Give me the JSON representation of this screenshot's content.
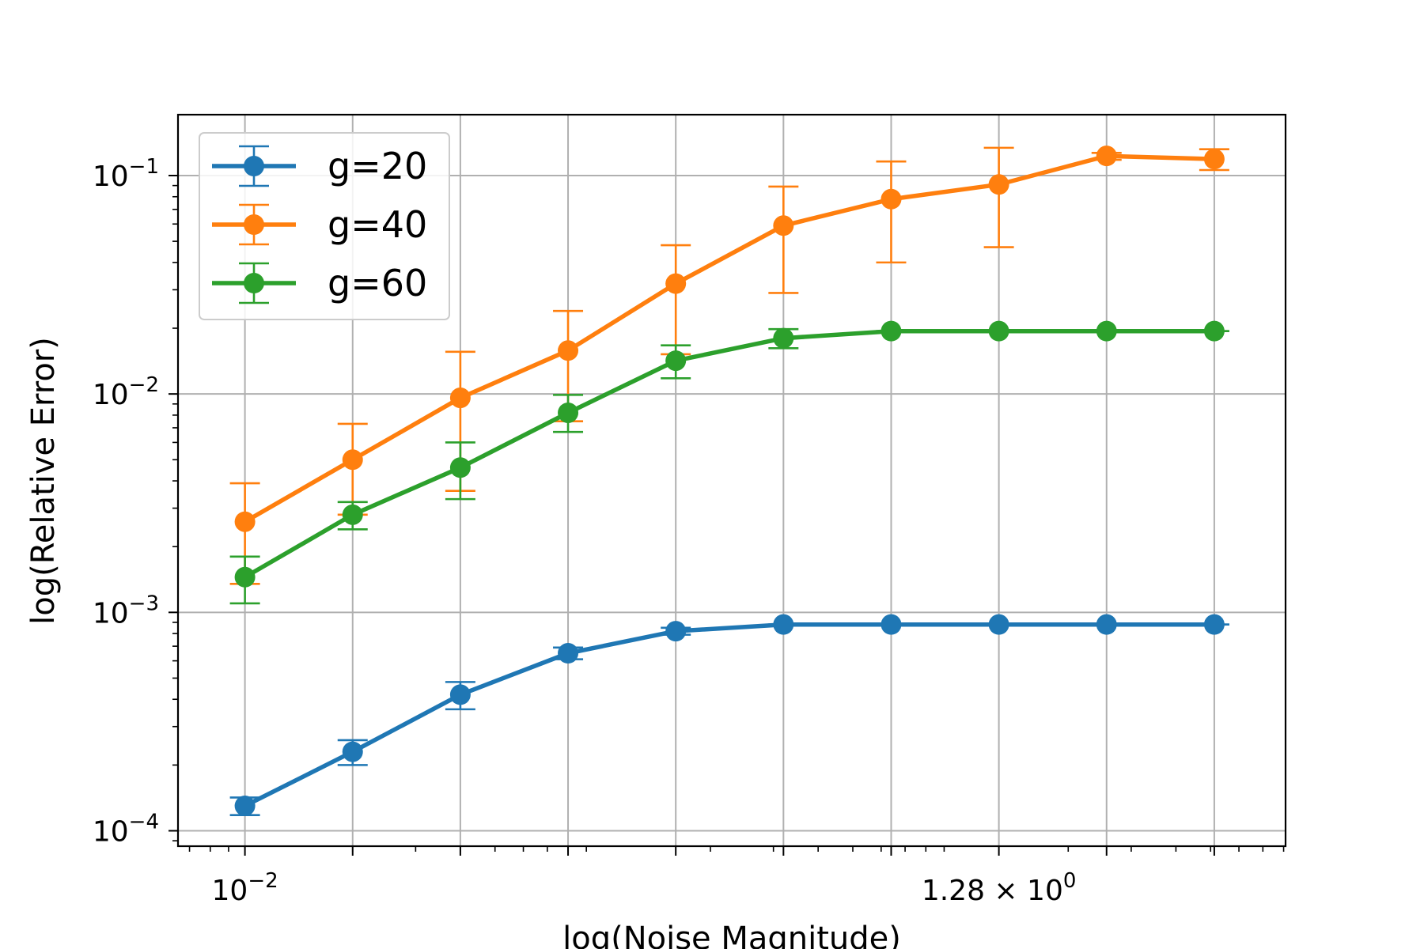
{
  "chart_data": {
    "type": "line",
    "xlabel": "log(Noise Magnitude)",
    "ylabel": "log(Relative Error)",
    "x_scale": "log2",
    "y_scale": "log10",
    "x": [
      0.01,
      0.02,
      0.04,
      0.08,
      0.16,
      0.32,
      0.64,
      1.28,
      2.56,
      5.12
    ],
    "xlim": [
      0.0065,
      8.1
    ],
    "ylim": [
      8.5e-05,
      0.19
    ],
    "x_tick_labels": [
      {
        "x": 0.01,
        "base": "10",
        "exp": "−2"
      },
      {
        "x": 1.28,
        "base": "1.28 × 10",
        "exp": "0"
      }
    ],
    "y_ticks": [
      {
        "y": 0.0001,
        "base": "10",
        "exp": "−4"
      },
      {
        "y": 0.001,
        "base": "10",
        "exp": "−3"
      },
      {
        "y": 0.01,
        "base": "10",
        "exp": "−2"
      },
      {
        "y": 0.1,
        "base": "10",
        "exp": "−1"
      }
    ],
    "grid": true,
    "legend_position": "top-left",
    "series": [
      {
        "name": "g=20",
        "color": "#1f77b4",
        "values": [
          0.00013,
          0.00023,
          0.00042,
          0.00065,
          0.00082,
          0.00088,
          0.00088,
          0.00088,
          0.00088,
          0.00088
        ],
        "err_low": [
          0.000118,
          0.0002,
          0.00036,
          0.00061,
          0.00079,
          0.00088,
          0.00088,
          0.00088,
          0.00088,
          0.00088
        ],
        "err_high": [
          0.000142,
          0.00026,
          0.00048,
          0.00069,
          0.00085,
          0.00088,
          0.00088,
          0.00088,
          0.00088,
          0.00088
        ]
      },
      {
        "name": "g=40",
        "color": "#ff7f0e",
        "values": [
          0.0026,
          0.005,
          0.0096,
          0.0158,
          0.032,
          0.059,
          0.078,
          0.091,
          0.123,
          0.119
        ],
        "err_low": [
          0.00135,
          0.0028,
          0.0036,
          0.0075,
          0.0152,
          0.029,
          0.04,
          0.047,
          0.118,
          0.106
        ],
        "err_high": [
          0.0039,
          0.0073,
          0.0156,
          0.024,
          0.048,
          0.089,
          0.116,
          0.134,
          0.127,
          0.132
        ]
      },
      {
        "name": "g=60",
        "color": "#2ca02c",
        "values": [
          0.00145,
          0.0028,
          0.0046,
          0.0082,
          0.0142,
          0.018,
          0.0194,
          0.0194,
          0.0194,
          0.0194
        ],
        "err_low": [
          0.0011,
          0.0024,
          0.0033,
          0.0067,
          0.0118,
          0.0162,
          0.0194,
          0.0194,
          0.0194,
          0.0194
        ],
        "err_high": [
          0.0018,
          0.0032,
          0.006,
          0.0099,
          0.0167,
          0.0198,
          0.0194,
          0.0194,
          0.0194,
          0.0194
        ]
      }
    ]
  }
}
